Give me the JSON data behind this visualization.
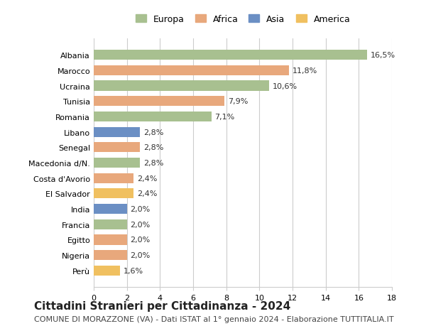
{
  "countries": [
    "Albania",
    "Marocco",
    "Ucraina",
    "Tunisia",
    "Romania",
    "Libano",
    "Senegal",
    "Macedonia d/N.",
    "Costa d'Avorio",
    "El Salvador",
    "India",
    "Francia",
    "Egitto",
    "Nigeria",
    "Perù"
  ],
  "values": [
    16.5,
    11.8,
    10.6,
    7.9,
    7.1,
    2.8,
    2.8,
    2.8,
    2.4,
    2.4,
    2.0,
    2.0,
    2.0,
    2.0,
    1.6
  ],
  "labels": [
    "16,5%",
    "11,8%",
    "10,6%",
    "7,9%",
    "7,1%",
    "2,8%",
    "2,8%",
    "2,8%",
    "2,4%",
    "2,4%",
    "2,0%",
    "2,0%",
    "2,0%",
    "2,0%",
    "1,6%"
  ],
  "continents": [
    "Europa",
    "Africa",
    "Europa",
    "Africa",
    "Europa",
    "Asia",
    "Africa",
    "Europa",
    "Africa",
    "America",
    "Asia",
    "Europa",
    "Africa",
    "Africa",
    "America"
  ],
  "colors": {
    "Europa": "#a8c090",
    "Africa": "#e8a87c",
    "Asia": "#6b8fc4",
    "America": "#f0c060"
  },
  "legend_colors": {
    "Europa": "#a8c090",
    "Africa": "#e8a87c",
    "Asia": "#6b8fc4",
    "America": "#f0c060"
  },
  "xlim": [
    0,
    18
  ],
  "xticks": [
    0,
    2,
    4,
    6,
    8,
    10,
    12,
    14,
    16,
    18
  ],
  "title": "Cittadini Stranieri per Cittadinanza - 2024",
  "subtitle": "COMUNE DI MORAZZONE (VA) - Dati ISTAT al 1° gennaio 2024 - Elaborazione TUTTITALIA.IT",
  "background_color": "#ffffff",
  "grid_color": "#cccccc",
  "bar_height": 0.65,
  "title_fontsize": 11,
  "subtitle_fontsize": 8,
  "label_fontsize": 8,
  "tick_fontsize": 8,
  "legend_fontsize": 9
}
